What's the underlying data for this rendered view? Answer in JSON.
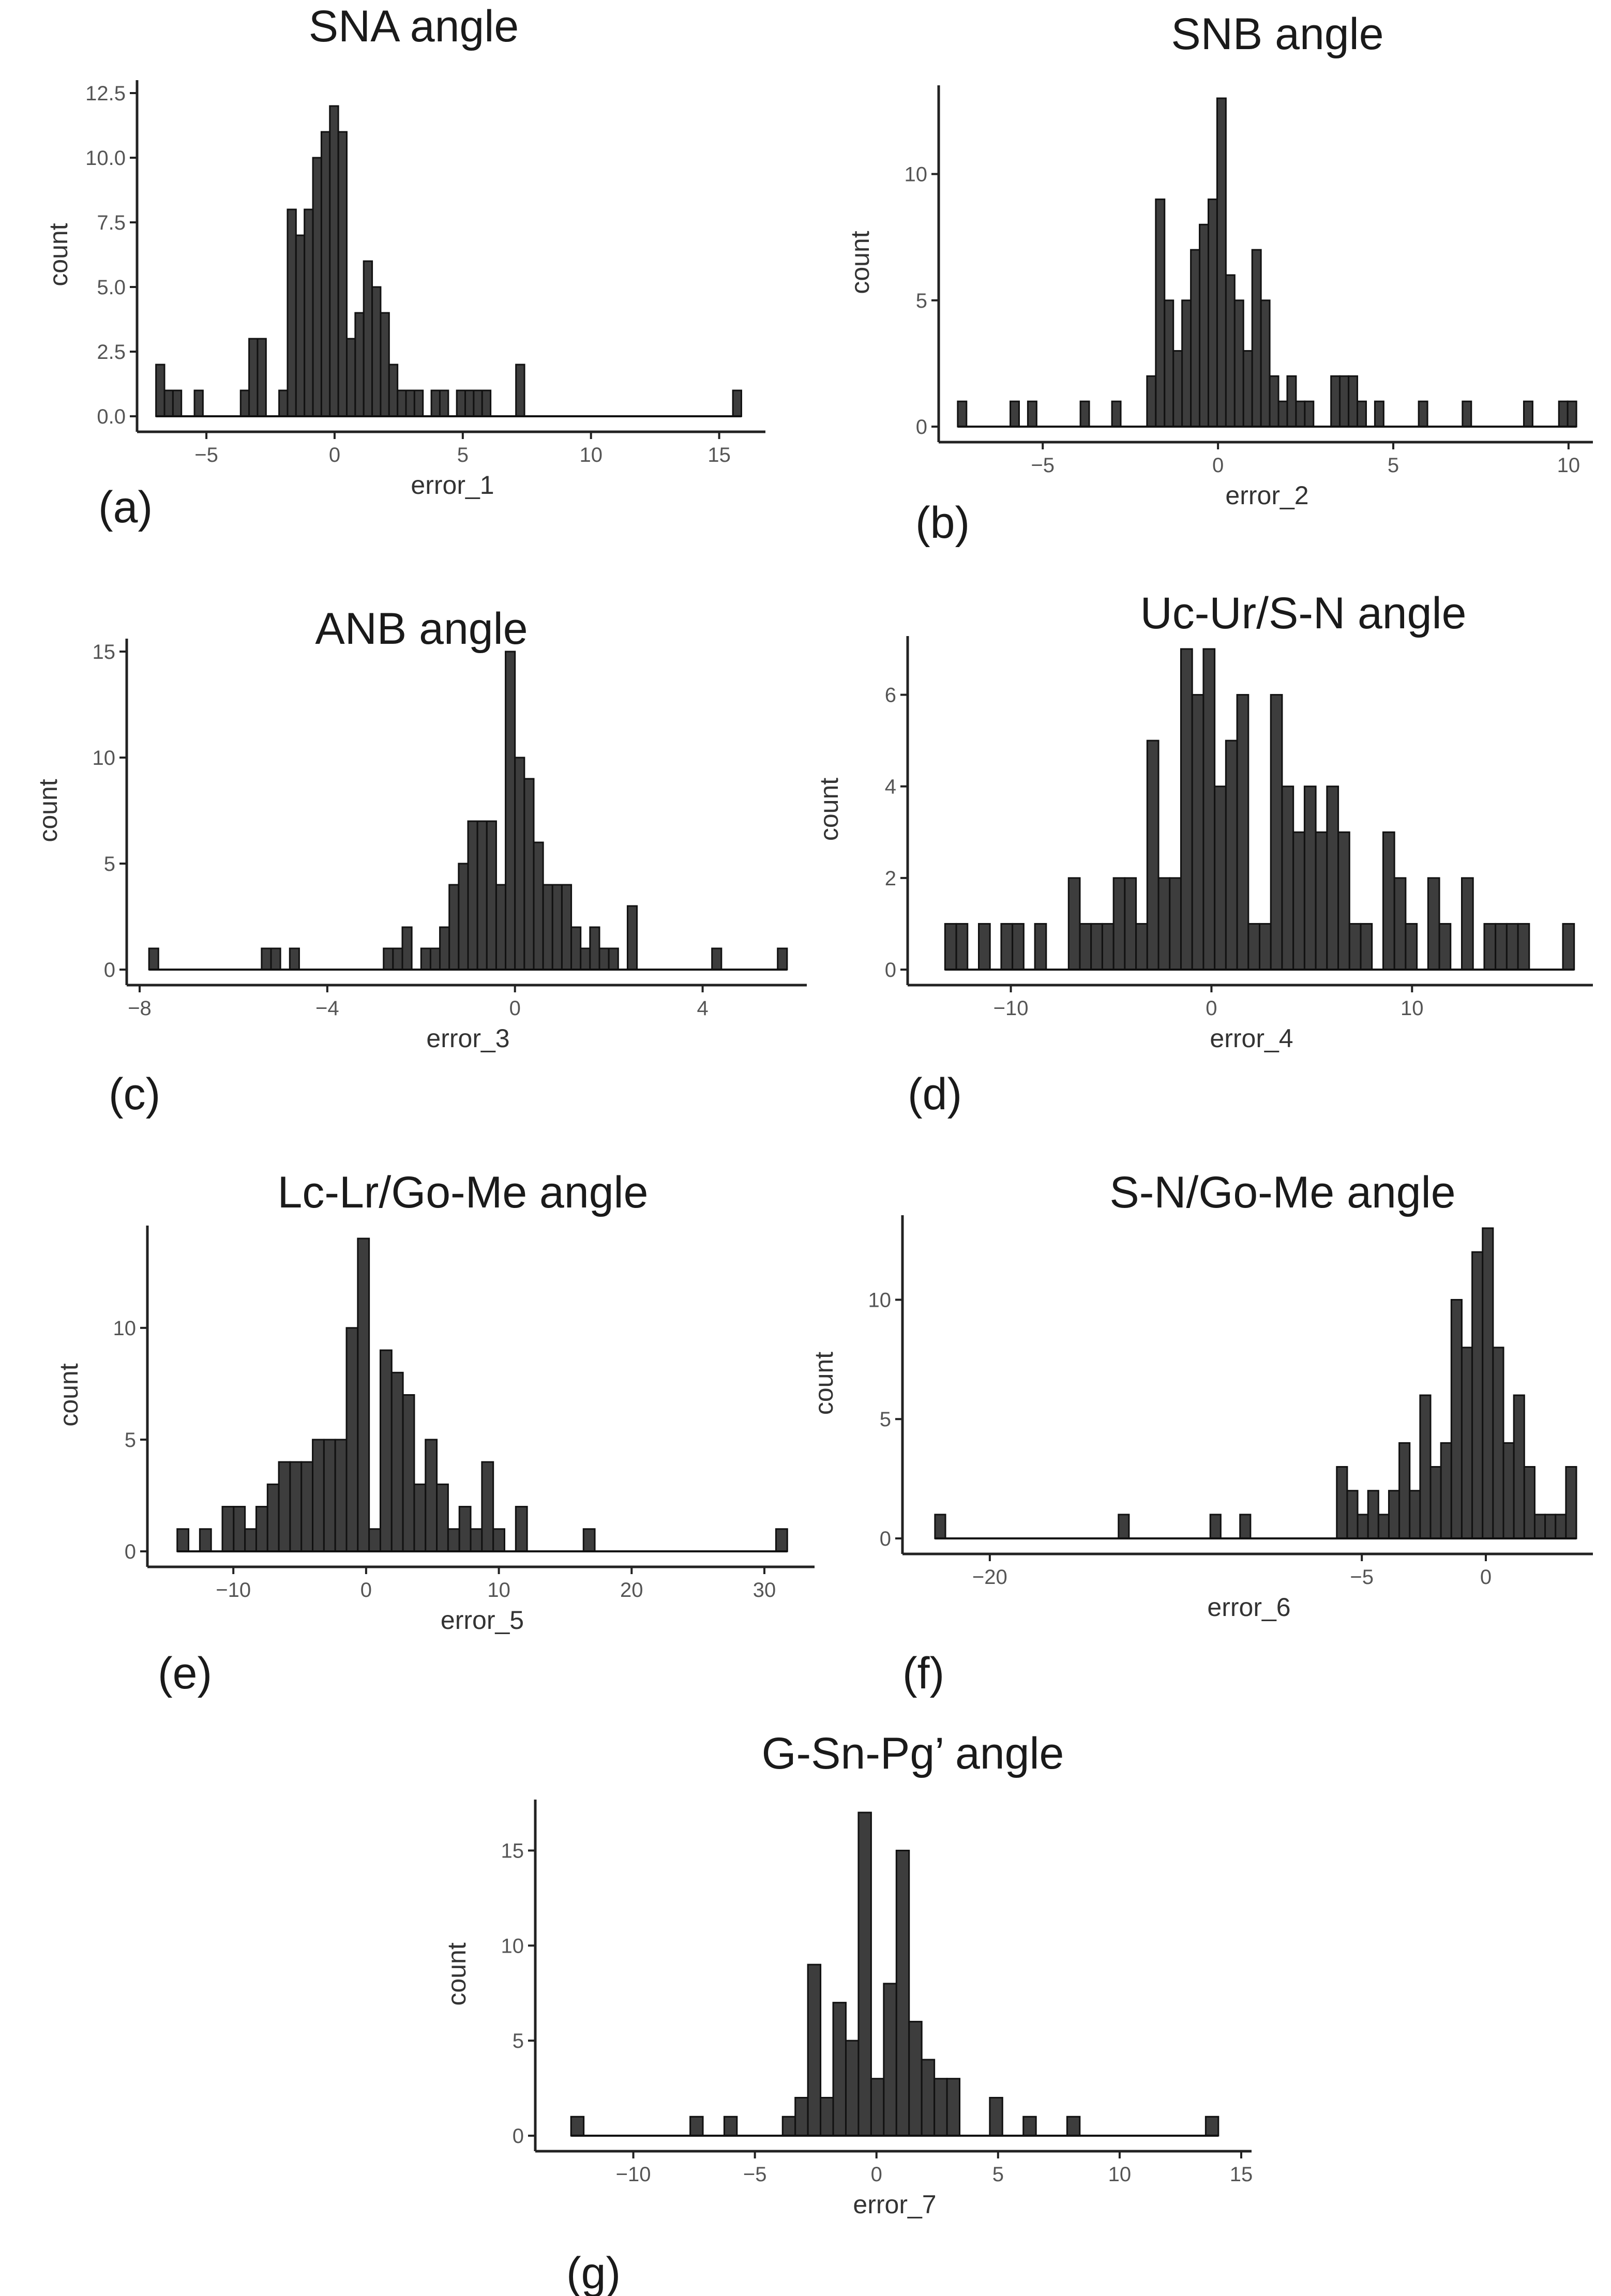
{
  "chart_data": [
    {
      "type": "bar",
      "id": "a",
      "panel_label": "(a)",
      "title": "SNA angle",
      "xlabel": "error_1",
      "ylabel": "count",
      "xlim": [
        -7.2,
        16.4
      ],
      "ylim": [
        0,
        12.5
      ],
      "xticks": [
        -5,
        0,
        5,
        10,
        15
      ],
      "xtick_labels": [
        "−5",
        "0",
        "5",
        "10",
        "15"
      ],
      "yticks": [
        0,
        2.5,
        5,
        7.5,
        10,
        12.5
      ],
      "ytick_labels": [
        "0.0",
        "2.5",
        "5.0",
        "7.5",
        "10.0",
        "12.5"
      ],
      "bin_width": 0.33,
      "bins": [
        {
          "x": -6.8,
          "count": 2
        },
        {
          "x": -6.47,
          "count": 1
        },
        {
          "x": -6.14,
          "count": 1
        },
        {
          "x": -5.3,
          "count": 1
        },
        {
          "x": -3.5,
          "count": 1
        },
        {
          "x": -3.17,
          "count": 3
        },
        {
          "x": -2.84,
          "count": 3
        },
        {
          "x": -2.0,
          "count": 1
        },
        {
          "x": -1.67,
          "count": 8
        },
        {
          "x": -1.34,
          "count": 7
        },
        {
          "x": -1.01,
          "count": 8
        },
        {
          "x": -0.68,
          "count": 10
        },
        {
          "x": -0.35,
          "count": 11
        },
        {
          "x": -0.02,
          "count": 12
        },
        {
          "x": 0.31,
          "count": 11
        },
        {
          "x": 0.64,
          "count": 3
        },
        {
          "x": 0.97,
          "count": 4
        },
        {
          "x": 1.3,
          "count": 6
        },
        {
          "x": 1.63,
          "count": 5
        },
        {
          "x": 1.96,
          "count": 4
        },
        {
          "x": 2.29,
          "count": 2
        },
        {
          "x": 2.62,
          "count": 1
        },
        {
          "x": 2.95,
          "count": 1
        },
        {
          "x": 3.28,
          "count": 1
        },
        {
          "x": 3.94,
          "count": 1
        },
        {
          "x": 4.27,
          "count": 1
        },
        {
          "x": 4.93,
          "count": 1
        },
        {
          "x": 5.26,
          "count": 1
        },
        {
          "x": 5.59,
          "count": 1
        },
        {
          "x": 5.92,
          "count": 1
        },
        {
          "x": 7.24,
          "count": 2
        },
        {
          "x": 15.7,
          "count": 1
        }
      ]
    },
    {
      "type": "bar",
      "id": "b",
      "panel_label": "(b)",
      "title": "SNB angle",
      "xlabel": "error_2",
      "ylabel": "count",
      "xlim": [
        -7.6,
        10.4
      ],
      "ylim": [
        0,
        13
      ],
      "xticks": [
        -5,
        0,
        5,
        10
      ],
      "xtick_labels": [
        "−5",
        "0",
        "5",
        "10"
      ],
      "yticks": [
        0,
        5,
        10
      ],
      "ytick_labels": [
        "0",
        "5",
        "10"
      ],
      "bin_width": 0.25,
      "bins": [
        {
          "x": -7.3,
          "count": 1
        },
        {
          "x": -5.8,
          "count": 1
        },
        {
          "x": -5.3,
          "count": 1
        },
        {
          "x": -3.8,
          "count": 1
        },
        {
          "x": -2.9,
          "count": 1
        },
        {
          "x": -1.9,
          "count": 2
        },
        {
          "x": -1.65,
          "count": 9
        },
        {
          "x": -1.4,
          "count": 5
        },
        {
          "x": -1.15,
          "count": 3
        },
        {
          "x": -0.9,
          "count": 5
        },
        {
          "x": -0.65,
          "count": 7
        },
        {
          "x": -0.4,
          "count": 8
        },
        {
          "x": -0.15,
          "count": 9
        },
        {
          "x": 0.1,
          "count": 13
        },
        {
          "x": 0.35,
          "count": 6
        },
        {
          "x": 0.6,
          "count": 5
        },
        {
          "x": 0.85,
          "count": 3
        },
        {
          "x": 1.1,
          "count": 7
        },
        {
          "x": 1.35,
          "count": 5
        },
        {
          "x": 1.6,
          "count": 2
        },
        {
          "x": 1.85,
          "count": 1
        },
        {
          "x": 2.1,
          "count": 2
        },
        {
          "x": 2.35,
          "count": 1
        },
        {
          "x": 2.6,
          "count": 1
        },
        {
          "x": 3.35,
          "count": 2
        },
        {
          "x": 3.6,
          "count": 2
        },
        {
          "x": 3.85,
          "count": 2
        },
        {
          "x": 4.1,
          "count": 1
        },
        {
          "x": 4.6,
          "count": 1
        },
        {
          "x": 5.85,
          "count": 1
        },
        {
          "x": 7.1,
          "count": 1
        },
        {
          "x": 8.85,
          "count": 1
        },
        {
          "x": 9.85,
          "count": 1
        },
        {
          "x": 10.1,
          "count": 1
        }
      ]
    },
    {
      "type": "bar",
      "id": "c",
      "panel_label": "(c)",
      "title": "ANB angle",
      "xlabel": "error_3",
      "ylabel": "count",
      "xlim": [
        -8.0,
        6.0
      ],
      "ylim": [
        0,
        15
      ],
      "xticks": [
        -8,
        -4,
        0,
        4
      ],
      "xtick_labels": [
        "−8",
        "−4",
        "0",
        "4"
      ],
      "yticks": [
        0,
        5,
        10,
        15
      ],
      "ytick_labels": [
        "0",
        "5",
        "10",
        "15"
      ],
      "bin_width": 0.2,
      "bins": [
        {
          "x": -7.7,
          "count": 1
        },
        {
          "x": -5.3,
          "count": 1
        },
        {
          "x": -5.1,
          "count": 1
        },
        {
          "x": -4.7,
          "count": 1
        },
        {
          "x": -2.7,
          "count": 1
        },
        {
          "x": -2.5,
          "count": 1
        },
        {
          "x": -2.3,
          "count": 2
        },
        {
          "x": -1.9,
          "count": 1
        },
        {
          "x": -1.7,
          "count": 1
        },
        {
          "x": -1.5,
          "count": 2
        },
        {
          "x": -1.3,
          "count": 4
        },
        {
          "x": -1.1,
          "count": 5
        },
        {
          "x": -0.9,
          "count": 7
        },
        {
          "x": -0.7,
          "count": 7
        },
        {
          "x": -0.5,
          "count": 7
        },
        {
          "x": -0.3,
          "count": 4
        },
        {
          "x": -0.1,
          "count": 15
        },
        {
          "x": 0.1,
          "count": 10
        },
        {
          "x": 0.3,
          "count": 9
        },
        {
          "x": 0.5,
          "count": 6
        },
        {
          "x": 0.7,
          "count": 4
        },
        {
          "x": 0.9,
          "count": 4
        },
        {
          "x": 1.1,
          "count": 4
        },
        {
          "x": 1.3,
          "count": 2
        },
        {
          "x": 1.5,
          "count": 1
        },
        {
          "x": 1.7,
          "count": 2
        },
        {
          "x": 1.9,
          "count": 1
        },
        {
          "x": 2.1,
          "count": 1
        },
        {
          "x": 2.5,
          "count": 3
        },
        {
          "x": 4.3,
          "count": 1
        },
        {
          "x": 5.7,
          "count": 1
        }
      ]
    },
    {
      "type": "bar",
      "id": "d",
      "panel_label": "(d)",
      "title": "Uc-Ur/S-N angle",
      "xlabel": "error_4",
      "ylabel": "count",
      "xlim": [
        -14.5,
        18.5
      ],
      "ylim": [
        0,
        7
      ],
      "xticks": [
        -10,
        0,
        10
      ],
      "xtick_labels": [
        "−10",
        "0",
        "10"
      ],
      "yticks": [
        0,
        2,
        4,
        6
      ],
      "ytick_labels": [
        "0",
        "2",
        "4",
        "6"
      ],
      "bin_width": 0.56,
      "bins": [
        {
          "x": -13.0,
          "count": 1
        },
        {
          "x": -12.44,
          "count": 1
        },
        {
          "x": -11.32,
          "count": 1
        },
        {
          "x": -10.2,
          "count": 1
        },
        {
          "x": -9.64,
          "count": 1
        },
        {
          "x": -8.52,
          "count": 1
        },
        {
          "x": -6.84,
          "count": 2
        },
        {
          "x": -6.28,
          "count": 1
        },
        {
          "x": -5.72,
          "count": 1
        },
        {
          "x": -5.16,
          "count": 1
        },
        {
          "x": -4.6,
          "count": 2
        },
        {
          "x": -4.04,
          "count": 2
        },
        {
          "x": -3.48,
          "count": 1
        },
        {
          "x": -2.92,
          "count": 5
        },
        {
          "x": -2.36,
          "count": 2
        },
        {
          "x": -1.8,
          "count": 2
        },
        {
          "x": -1.24,
          "count": 7
        },
        {
          "x": -0.68,
          "count": 6
        },
        {
          "x": -0.12,
          "count": 7
        },
        {
          "x": 0.44,
          "count": 4
        },
        {
          "x": 1.0,
          "count": 5
        },
        {
          "x": 1.56,
          "count": 6
        },
        {
          "x": 2.12,
          "count": 1
        },
        {
          "x": 2.68,
          "count": 1
        },
        {
          "x": 3.24,
          "count": 6
        },
        {
          "x": 3.8,
          "count": 4
        },
        {
          "x": 4.36,
          "count": 3
        },
        {
          "x": 4.92,
          "count": 4
        },
        {
          "x": 5.48,
          "count": 3
        },
        {
          "x": 6.04,
          "count": 4
        },
        {
          "x": 6.6,
          "count": 3
        },
        {
          "x": 7.16,
          "count": 1
        },
        {
          "x": 7.72,
          "count": 1
        },
        {
          "x": 8.84,
          "count": 3
        },
        {
          "x": 9.4,
          "count": 2
        },
        {
          "x": 9.96,
          "count": 1
        },
        {
          "x": 11.08,
          "count": 2
        },
        {
          "x": 11.64,
          "count": 1
        },
        {
          "x": 12.76,
          "count": 2
        },
        {
          "x": 13.88,
          "count": 1
        },
        {
          "x": 14.44,
          "count": 1
        },
        {
          "x": 15.0,
          "count": 1
        },
        {
          "x": 15.56,
          "count": 1
        },
        {
          "x": 17.8,
          "count": 1
        }
      ]
    },
    {
      "type": "bar",
      "id": "e",
      "panel_label": "(e)",
      "title": "Lc-Lr/Go-Me angle",
      "xlabel": "error_5",
      "ylabel": "count",
      "xlim": [
        -15.5,
        33.0
      ],
      "ylim": [
        0,
        14
      ],
      "xticks": [
        -10,
        0,
        10,
        20,
        30
      ],
      "xtick_labels": [
        "−10",
        "0",
        "10",
        "20",
        "30"
      ],
      "yticks": [
        0,
        5,
        10
      ],
      "ytick_labels": [
        "0",
        "5",
        "10"
      ],
      "bin_width": 0.85,
      "bins": [
        {
          "x": -13.8,
          "count": 1
        },
        {
          "x": -12.1,
          "count": 1
        },
        {
          "x": -10.4,
          "count": 2
        },
        {
          "x": -9.55,
          "count": 2
        },
        {
          "x": -8.7,
          "count": 1
        },
        {
          "x": -7.85,
          "count": 2
        },
        {
          "x": -7.0,
          "count": 3
        },
        {
          "x": -6.15,
          "count": 4
        },
        {
          "x": -5.3,
          "count": 4
        },
        {
          "x": -4.45,
          "count": 4
        },
        {
          "x": -3.6,
          "count": 5
        },
        {
          "x": -2.75,
          "count": 5
        },
        {
          "x": -1.9,
          "count": 5
        },
        {
          "x": -1.05,
          "count": 10
        },
        {
          "x": -0.2,
          "count": 14
        },
        {
          "x": 0.65,
          "count": 1
        },
        {
          "x": 1.5,
          "count": 9
        },
        {
          "x": 2.35,
          "count": 8
        },
        {
          "x": 3.2,
          "count": 7
        },
        {
          "x": 4.05,
          "count": 3
        },
        {
          "x": 4.9,
          "count": 5
        },
        {
          "x": 5.75,
          "count": 3
        },
        {
          "x": 6.6,
          "count": 1
        },
        {
          "x": 7.45,
          "count": 2
        },
        {
          "x": 8.3,
          "count": 1
        },
        {
          "x": 9.15,
          "count": 4
        },
        {
          "x": 10.0,
          "count": 1
        },
        {
          "x": 11.7,
          "count": 2
        },
        {
          "x": 16.8,
          "count": 1
        },
        {
          "x": 31.3,
          "count": 1
        }
      ]
    },
    {
      "type": "bar",
      "id": "f",
      "panel_label": "(f)",
      "title": "S-N/Go-Me angle",
      "xlabel": "error_6",
      "ylabel": "count",
      "xlim": [
        -23.0,
        3.9
      ],
      "ylim": [
        0,
        13
      ],
      "xticks": [
        -20,
        -5,
        0
      ],
      "xtick_labels": [
        "−20",
        "−5",
        "0"
      ],
      "yticks": [
        0,
        5,
        10
      ],
      "ytick_labels": [
        "0",
        "5",
        "10"
      ],
      "bin_width": 0.42,
      "bins": [
        {
          "x": -22.0,
          "count": 1
        },
        {
          "x": -14.6,
          "count": 1
        },
        {
          "x": -10.9,
          "count": 1
        },
        {
          "x": -9.7,
          "count": 1
        },
        {
          "x": -5.8,
          "count": 3
        },
        {
          "x": -5.38,
          "count": 2
        },
        {
          "x": -4.96,
          "count": 1
        },
        {
          "x": -4.54,
          "count": 2
        },
        {
          "x": -4.12,
          "count": 1
        },
        {
          "x": -3.7,
          "count": 2
        },
        {
          "x": -3.28,
          "count": 4
        },
        {
          "x": -2.86,
          "count": 2
        },
        {
          "x": -2.44,
          "count": 6
        },
        {
          "x": -2.02,
          "count": 3
        },
        {
          "x": -1.6,
          "count": 4
        },
        {
          "x": -1.18,
          "count": 10
        },
        {
          "x": -0.76,
          "count": 8
        },
        {
          "x": -0.34,
          "count": 12
        },
        {
          "x": 0.08,
          "count": 13
        },
        {
          "x": 0.5,
          "count": 8
        },
        {
          "x": 0.92,
          "count": 4
        },
        {
          "x": 1.34,
          "count": 6
        },
        {
          "x": 1.76,
          "count": 3
        },
        {
          "x": 2.18,
          "count": 1
        },
        {
          "x": 2.6,
          "count": 1
        },
        {
          "x": 3.02,
          "count": 1
        },
        {
          "x": 3.44,
          "count": 3
        }
      ]
    },
    {
      "type": "bar",
      "id": "g",
      "panel_label": "(g)",
      "title": "G-Sn-Pg’ angle",
      "xlabel": "error_7",
      "ylabel": "count",
      "xlim": [
        -13.5,
        15.0
      ],
      "ylim": [
        0,
        17
      ],
      "xticks": [
        -10,
        -5,
        0,
        5,
        10,
        15
      ],
      "xtick_labels": [
        "−10",
        "−5",
        "0",
        "5",
        "10",
        "15"
      ],
      "yticks": [
        0,
        5,
        10,
        15
      ],
      "ytick_labels": [
        "0",
        "5",
        "10",
        "15"
      ],
      "bin_width": 0.52,
      "bins": [
        {
          "x": -12.3,
          "count": 1
        },
        {
          "x": -7.4,
          "count": 1
        },
        {
          "x": -6.0,
          "count": 1
        },
        {
          "x": -3.6,
          "count": 1
        },
        {
          "x": -3.08,
          "count": 2
        },
        {
          "x": -2.56,
          "count": 9
        },
        {
          "x": -2.04,
          "count": 2
        },
        {
          "x": -1.52,
          "count": 7
        },
        {
          "x": -1.0,
          "count": 5
        },
        {
          "x": -0.48,
          "count": 17
        },
        {
          "x": 0.04,
          "count": 3
        },
        {
          "x": 0.56,
          "count": 8
        },
        {
          "x": 1.08,
          "count": 15
        },
        {
          "x": 1.6,
          "count": 6
        },
        {
          "x": 2.12,
          "count": 4
        },
        {
          "x": 2.64,
          "count": 3
        },
        {
          "x": 3.16,
          "count": 3
        },
        {
          "x": 4.92,
          "count": 2
        },
        {
          "x": 6.3,
          "count": 1
        },
        {
          "x": 8.1,
          "count": 1
        },
        {
          "x": 13.8,
          "count": 1
        }
      ]
    }
  ]
}
